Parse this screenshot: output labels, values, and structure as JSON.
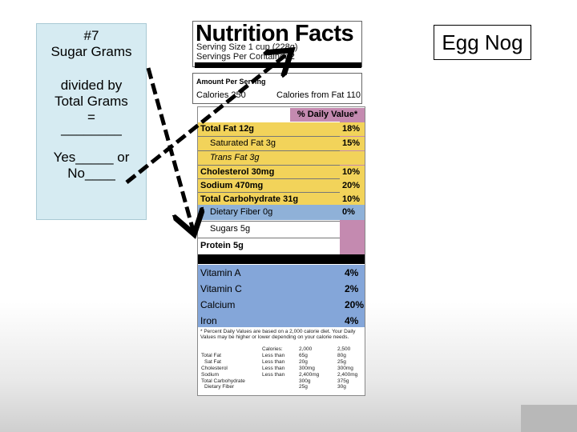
{
  "question": {
    "number": "#7",
    "line1": "Sugar Grams",
    "line2": "divided by",
    "line3": "Total Grams",
    "line4": "=",
    "line5": "________",
    "line6": "Yes_____ or",
    "line7": "No____"
  },
  "product_label": "Egg Nog",
  "nutrition": {
    "title": "Nutrition Facts",
    "serving_size": "Serving Size 1 cup (228g)",
    "servings_per_container": "Servings Per Container 2",
    "amount_per_serving": "Amount Per Serving",
    "calories": "Calories 250",
    "calories_from_fat": "Calories from Fat 110",
    "daily_value_header": "% Daily Value*",
    "rows": [
      {
        "label": "Total Fat 12g",
        "pct": "18%"
      },
      {
        "label": "Saturated Fat 3g",
        "pct": "15%"
      },
      {
        "label": "Trans Fat 3g",
        "pct": ""
      },
      {
        "label": "Cholesterol 30mg",
        "pct": "10%"
      },
      {
        "label": "Sodium 470mg",
        "pct": "20%"
      },
      {
        "label": "Total Carbohydrate 31g",
        "pct": "10%"
      },
      {
        "label": "Dietary Fiber 0g",
        "pct": "0%"
      },
      {
        "label": "Sugars 5g",
        "pct": ""
      },
      {
        "label": "Protein 5g",
        "pct": ""
      }
    ],
    "vitamins": [
      {
        "label": "Vitamin A",
        "pct": "4%"
      },
      {
        "label": "Vitamin C",
        "pct": "2%"
      },
      {
        "label": "Calcium",
        "pct": "20%"
      },
      {
        "label": "Iron",
        "pct": "4%"
      }
    ],
    "footnote": "* Percent Daily Values are based on a 2,000 calorie diet. Your Daily Values may be higher or lower depending on your calorie needs.",
    "footer_table": [
      [
        "",
        "Calories:",
        "2,000",
        "2,500"
      ],
      [
        "Total Fat",
        "Less than",
        "65g",
        "80g"
      ],
      [
        "Sat Fat",
        "Less than",
        "20g",
        "25g"
      ],
      [
        "Cholesterol",
        "Less than",
        "300mg",
        "300mg"
      ],
      [
        "Sodium",
        "Less than",
        "2,400mg",
        "2,400mg"
      ],
      [
        "Total Carbohydrate",
        "",
        "300g",
        "375g"
      ],
      [
        "Dietary Fiber",
        "",
        "25g",
        "30g"
      ]
    ]
  },
  "colors": {
    "question_bg": "#d6ebf2",
    "yellow_band": "#f2d35a",
    "blue_band": "#8fb1d8",
    "daily_value_column": "#c48ab0"
  }
}
